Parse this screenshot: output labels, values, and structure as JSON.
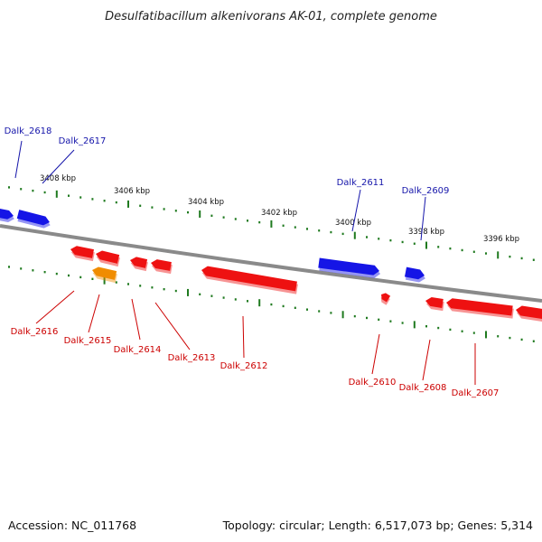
{
  "title": "Desulfatibacillum alkenivorans AK-01, complete genome",
  "footer": {
    "accession": "Accession: NC_011768",
    "summary": "Topology: circular; Length: 6,517,073 bp; Genes: 5,314"
  },
  "colors": {
    "forward_gene": "#1515e6",
    "reverse_gene": "#ee1111",
    "highlight_gene": "#f08c00",
    "backbone": "#8a8a8a",
    "tick": "#1f7a1f",
    "label_forward": "#1515aa",
    "label_reverse": "#cc0000"
  },
  "scale_labels": [
    "3408 kbp",
    "3406 kbp",
    "3404 kbp",
    "3402 kbp",
    "3400 kbp",
    "3398 kbp",
    "3396 kbp"
  ],
  "genes": [
    {
      "id": "Dalk_2618",
      "strand": "forward"
    },
    {
      "id": "Dalk_2617",
      "strand": "forward"
    },
    {
      "id": "Dalk_2616",
      "strand": "reverse"
    },
    {
      "id": "Dalk_2615",
      "strand": "reverse"
    },
    {
      "id": "Dalk_2614",
      "strand": "reverse"
    },
    {
      "id": "Dalk_2613",
      "strand": "reverse"
    },
    {
      "id": "Dalk_2612",
      "strand": "reverse"
    },
    {
      "id": "Dalk_2611",
      "strand": "forward"
    },
    {
      "id": "Dalk_2610",
      "strand": "reverse"
    },
    {
      "id": "Dalk_2609",
      "strand": "forward"
    },
    {
      "id": "Dalk_2608",
      "strand": "reverse"
    },
    {
      "id": "Dalk_2607",
      "strand": "reverse"
    }
  ]
}
